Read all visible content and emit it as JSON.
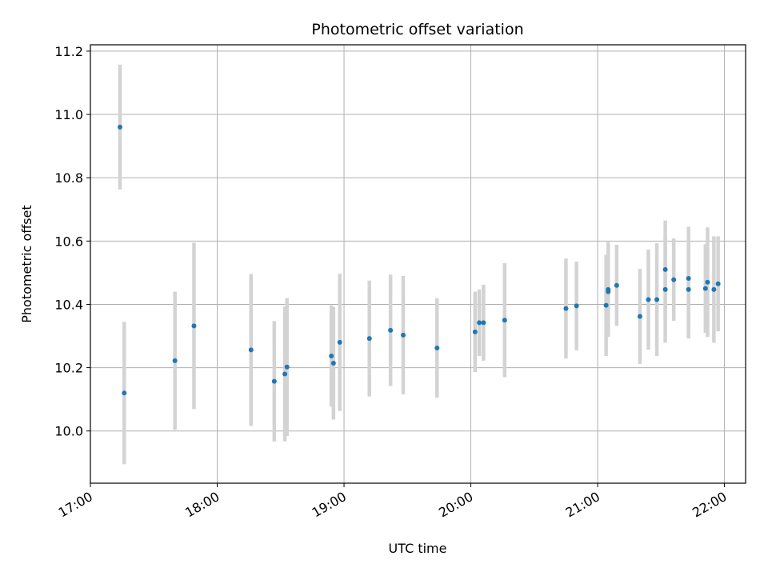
{
  "chart_data": {
    "type": "scatter",
    "title": "Photometric offset variation",
    "xlabel": "UTC time",
    "ylabel": "Photometric offset",
    "x_axis_kind": "time",
    "xlim": [
      "17:00",
      "22:10"
    ],
    "ylim": [
      9.835,
      11.22
    ],
    "x_ticks": [
      "17:00",
      "18:00",
      "19:00",
      "20:00",
      "21:00",
      "22:00"
    ],
    "y_ticks": [
      "10.0",
      "10.2",
      "10.4",
      "10.6",
      "10.8",
      "11.0",
      "11.2"
    ],
    "grid": true,
    "point_color": "#1f77b4",
    "errorbar_color": "#d3d3d3",
    "points": [
      {
        "t": "17:14",
        "y": 10.96,
        "err": 0.197
      },
      {
        "t": "17:16",
        "y": 10.12,
        "err": 0.225
      },
      {
        "t": "17:40",
        "y": 10.222,
        "err": 0.218
      },
      {
        "t": "17:49",
        "y": 10.332,
        "err": 0.263
      },
      {
        "t": "18:16",
        "y": 10.256,
        "err": 0.24
      },
      {
        "t": "18:27",
        "y": 10.157,
        "err": 0.19
      },
      {
        "t": "18:32",
        "y": 10.18,
        "err": 0.213
      },
      {
        "t": "18:33",
        "y": 10.202,
        "err": 0.218
      },
      {
        "t": "18:54",
        "y": 10.237,
        "err": 0.16
      },
      {
        "t": "18:55",
        "y": 10.214,
        "err": 0.178
      },
      {
        "t": "18:58",
        "y": 10.28,
        "err": 0.217
      },
      {
        "t": "19:12",
        "y": 10.292,
        "err": 0.183
      },
      {
        "t": "19:22",
        "y": 10.318,
        "err": 0.176
      },
      {
        "t": "19:28",
        "y": 10.303,
        "err": 0.187
      },
      {
        "t": "19:44",
        "y": 10.262,
        "err": 0.157
      },
      {
        "t": "20:02",
        "y": 10.313,
        "err": 0.127
      },
      {
        "t": "20:04",
        "y": 10.342,
        "err": 0.105
      },
      {
        "t": "20:06",
        "y": 10.342,
        "err": 0.12
      },
      {
        "t": "20:16",
        "y": 10.35,
        "err": 0.18
      },
      {
        "t": "20:45",
        "y": 10.387,
        "err": 0.158
      },
      {
        "t": "20:50",
        "y": 10.395,
        "err": 0.14
      },
      {
        "t": "21:04",
        "y": 10.397,
        "err": 0.16
      },
      {
        "t": "21:05",
        "y": 10.447,
        "err": 0.15
      },
      {
        "t": "21:05",
        "y": 10.44,
        "err": 0.138
      },
      {
        "t": "21:09",
        "y": 10.46,
        "err": 0.128
      },
      {
        "t": "21:20",
        "y": 10.362,
        "err": 0.15
      },
      {
        "t": "21:24",
        "y": 10.415,
        "err": 0.158
      },
      {
        "t": "21:28",
        "y": 10.415,
        "err": 0.178
      },
      {
        "t": "21:32",
        "y": 10.447,
        "err": 0.168
      },
      {
        "t": "21:32",
        "y": 10.51,
        "err": 0.155
      },
      {
        "t": "21:36",
        "y": 10.478,
        "err": 0.13
      },
      {
        "t": "21:43",
        "y": 10.447,
        "err": 0.155
      },
      {
        "t": "21:43",
        "y": 10.482,
        "err": 0.163
      },
      {
        "t": "21:51",
        "y": 10.45,
        "err": 0.14
      },
      {
        "t": "21:52",
        "y": 10.47,
        "err": 0.173
      },
      {
        "t": "21:55",
        "y": 10.447,
        "err": 0.168
      },
      {
        "t": "21:57",
        "y": 10.465,
        "err": 0.15
      }
    ]
  }
}
